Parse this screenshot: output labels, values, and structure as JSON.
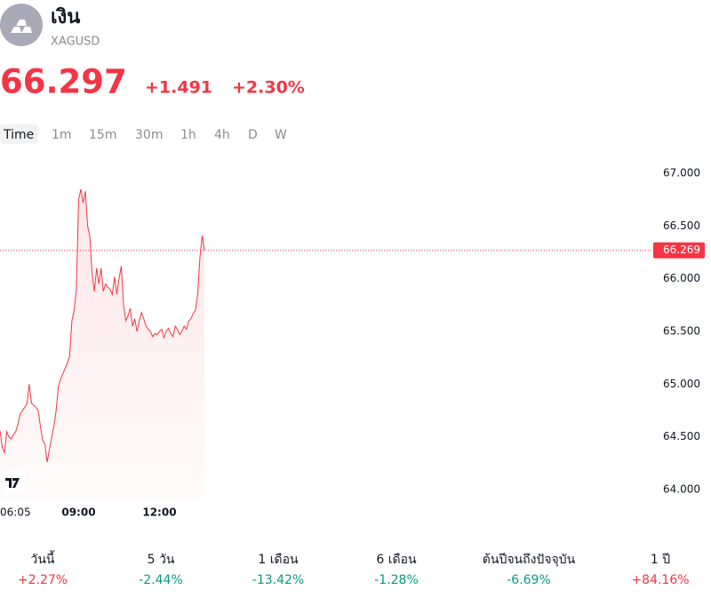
{
  "header": {
    "name": "เงิน",
    "symbol": "XAGUSD",
    "price": "66.297",
    "change": "+1.491",
    "change_percent": "+2.30%"
  },
  "intervals": [
    "Time",
    "1m",
    "15m",
    "30m",
    "1h",
    "4h",
    "D",
    "W"
  ],
  "chart_data": {
    "type": "line",
    "color": "#f23645",
    "grid": false,
    "categories": [
      "06:05",
      null,
      null,
      null,
      null,
      null,
      null,
      null,
      null,
      null,
      null,
      null,
      null,
      null,
      null,
      null,
      null,
      null,
      null,
      null,
      null,
      null,
      null,
      null,
      null,
      null,
      null,
      null,
      null,
      null,
      null,
      null,
      null,
      null,
      null,
      "09:00",
      null,
      null,
      null,
      null,
      null,
      null,
      null,
      null,
      null,
      null,
      null,
      null,
      null,
      null,
      null,
      null,
      null,
      null,
      null,
      null,
      null,
      null,
      null,
      null,
      null,
      null,
      null,
      null,
      null,
      null,
      null,
      null,
      null,
      null,
      null,
      "12:00",
      null,
      null,
      null,
      null,
      null,
      null,
      null,
      null,
      null,
      null,
      null,
      null,
      null,
      null,
      null,
      null,
      null,
      null,
      null,
      null
    ],
    "values": [
      64.56,
      64.4,
      64.35,
      64.55,
      64.5,
      64.48,
      64.52,
      64.55,
      64.62,
      64.72,
      64.75,
      64.78,
      64.82,
      65.0,
      64.82,
      64.8,
      64.78,
      64.75,
      64.6,
      64.47,
      64.43,
      64.26,
      64.38,
      64.5,
      64.6,
      64.75,
      64.98,
      65.05,
      65.1,
      65.15,
      65.2,
      65.27,
      65.6,
      65.7,
      65.9,
      66.75,
      66.85,
      66.72,
      66.83,
      66.5,
      66.4,
      66.05,
      65.88,
      66.1,
      65.95,
      66.1,
      65.88,
      65.95,
      65.92,
      65.9,
      65.85,
      66.02,
      65.85,
      66.0,
      66.12,
      65.75,
      65.6,
      65.65,
      65.72,
      65.55,
      65.62,
      65.5,
      65.6,
      65.68,
      65.62,
      65.55,
      65.52,
      65.5,
      65.45,
      65.48,
      65.47,
      65.5,
      65.52,
      65.44,
      65.5,
      65.53,
      65.48,
      65.45,
      65.55,
      65.52,
      65.47,
      65.5,
      65.55,
      65.52,
      65.6,
      65.62,
      65.67,
      65.7,
      65.85,
      66.2,
      66.41,
      66.27
    ],
    "ylim": [
      63.9,
      67.1
    ],
    "yticks": [
      {
        "value": 64,
        "label": "64.000"
      },
      {
        "value": 64.5,
        "label": "64.500"
      },
      {
        "value": 65,
        "label": "65.000"
      },
      {
        "value": 65.5,
        "label": "65.500"
      },
      {
        "value": 66,
        "label": "66.000"
      },
      {
        "value": 66.5,
        "label": "66.500"
      },
      {
        "value": 67,
        "label": "67.000"
      }
    ],
    "last_value": {
      "value": 66.269,
      "label": "66.269"
    }
  },
  "performance": [
    {
      "label": "วันนี้",
      "value": "+2.27%",
      "color": "#f23645"
    },
    {
      "label": "5 วัน",
      "value": "-2.44%",
      "color": "#089981"
    },
    {
      "label": "1 เดือน",
      "value": "-13.42%",
      "color": "#089981"
    },
    {
      "label": "6 เดือน",
      "value": "-1.28%",
      "color": "#089981"
    },
    {
      "label": "ต้นปีจนถึงปัจจุบัน",
      "value": "-6.69%",
      "color": "#089981"
    },
    {
      "label": "1 ปี",
      "value": "+84.16%",
      "color": "#f23645"
    }
  ]
}
